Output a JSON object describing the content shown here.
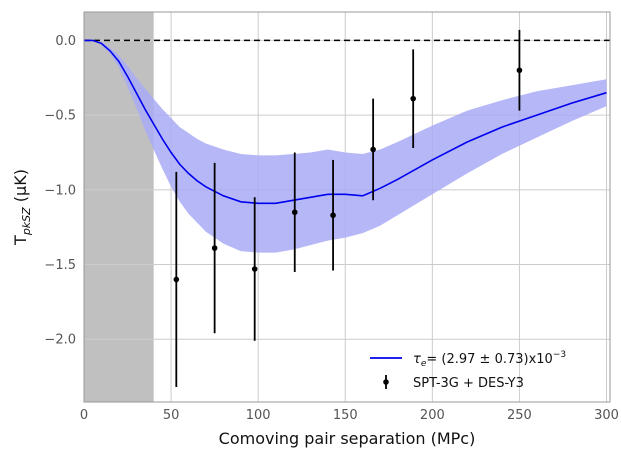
{
  "chart_data": {
    "type": "line",
    "xlabel": "Comoving pair separation (MPc)",
    "ylabel": "T_pkSZ (µK)",
    "ylabel_main": "T",
    "ylabel_sub": "pkSZ",
    "ylabel_unit": " (µK)",
    "xlim": [
      0,
      302
    ],
    "ylim": [
      -2.42,
      0.19
    ],
    "x_ticks": [
      0,
      50,
      100,
      150,
      200,
      250,
      300
    ],
    "y_ticks": [
      0.0,
      -0.5,
      -1.0,
      -1.5,
      -2.0
    ],
    "x_tick_labels": [
      "0",
      "50",
      "100",
      "150",
      "200",
      "250",
      "300"
    ],
    "y_tick_labels": [
      "0.0",
      "−0.5",
      "−1.0",
      "−1.5",
      "−2.0"
    ],
    "grid": true,
    "excluded_region": [
      0,
      40
    ],
    "reference_line_y": 0,
    "model": {
      "x": [
        0,
        5,
        10,
        15,
        20,
        25,
        30,
        35,
        40,
        45,
        50,
        55,
        60,
        65,
        70,
        75,
        80,
        90,
        100,
        110,
        120,
        130,
        140,
        150,
        160,
        170,
        180,
        200,
        220,
        240,
        260,
        280,
        300
      ],
      "y": [
        0,
        0,
        -0.02,
        -0.07,
        -0.14,
        -0.24,
        -0.35,
        -0.46,
        -0.56,
        -0.66,
        -0.75,
        -0.83,
        -0.89,
        -0.94,
        -0.98,
        -1.01,
        -1.04,
        -1.08,
        -1.09,
        -1.09,
        -1.07,
        -1.05,
        -1.03,
        -1.03,
        -1.04,
        -0.99,
        -0.93,
        -0.8,
        -0.68,
        -0.58,
        -0.5,
        -0.42,
        -0.35
      ],
      "lower": [
        0,
        0,
        -0.03,
        -0.09,
        -0.18,
        -0.31,
        -0.45,
        -0.6,
        -0.73,
        -0.86,
        -0.98,
        -1.08,
        -1.16,
        -1.22,
        -1.28,
        -1.32,
        -1.36,
        -1.41,
        -1.42,
        -1.42,
        -1.4,
        -1.37,
        -1.34,
        -1.32,
        -1.29,
        -1.24,
        -1.17,
        -1.03,
        -0.89,
        -0.76,
        -0.65,
        -0.54,
        -0.44
      ],
      "upper": [
        0,
        0,
        -0.01,
        -0.05,
        -0.1,
        -0.17,
        -0.25,
        -0.32,
        -0.39,
        -0.46,
        -0.52,
        -0.58,
        -0.62,
        -0.66,
        -0.69,
        -0.71,
        -0.73,
        -0.76,
        -0.77,
        -0.77,
        -0.76,
        -0.75,
        -0.73,
        -0.75,
        -0.76,
        -0.73,
        -0.68,
        -0.57,
        -0.47,
        -0.4,
        -0.34,
        -0.3,
        -0.26
      ]
    },
    "series": [
      {
        "name": "SPT-3G + DES-Y3",
        "x": [
          53,
          75,
          98,
          121,
          143,
          166,
          189,
          250
        ],
        "y": [
          -1.6,
          -1.39,
          -1.53,
          -1.15,
          -1.17,
          -0.73,
          -0.39,
          -0.2
        ],
        "yerr": [
          0.72,
          0.57,
          0.48,
          0.4,
          0.37,
          0.34,
          0.33,
          0.27
        ]
      }
    ],
    "legend": {
      "placement": "lower-right",
      "model_label_prefix": "τ",
      "model_label_sub": "e",
      "model_label_main": "= (2.97 ± 0.73)x10",
      "model_label_exp": "−3",
      "data_label": "SPT-3G + DES-Y3"
    },
    "colors": {
      "model_line": "#0000ee",
      "model_band": "#a9aaf6",
      "excluded_region": "#c0c0c0",
      "data_points": "#000000",
      "grid": "#cccccc",
      "axes": "#999999"
    }
  }
}
